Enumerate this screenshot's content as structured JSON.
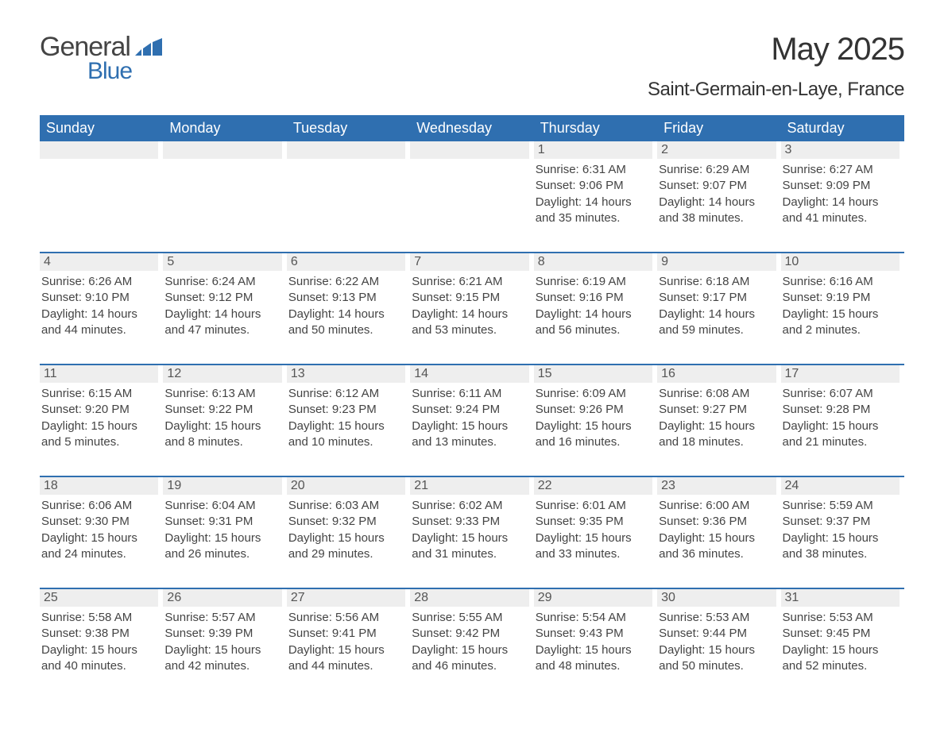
{
  "brand": {
    "text_general": "General",
    "text_blue": "Blue",
    "colors": {
      "general": "#444444",
      "blue": "#2f6fb0",
      "icon": "#2f6fb0"
    }
  },
  "title": {
    "month_year": "May 2025",
    "location": "Saint-Germain-en-Laye, France"
  },
  "styling": {
    "header_bg": "#2f6fb0",
    "header_text": "#ffffff",
    "row_separator": "#2f6fb0",
    "daynum_bg": "#eeeeee",
    "daynum_text": "#555555",
    "body_text": "#444444",
    "page_bg": "#ffffff",
    "font_family": "Arial, Helvetica, sans-serif",
    "month_title_fontsize": 40,
    "location_fontsize": 24,
    "day_header_fontsize": 18,
    "daynum_fontsize": 16,
    "detail_fontsize": 15
  },
  "day_headers": [
    "Sunday",
    "Monday",
    "Tuesday",
    "Wednesday",
    "Thursday",
    "Friday",
    "Saturday"
  ],
  "weeks": [
    [
      {
        "empty": true
      },
      {
        "empty": true
      },
      {
        "empty": true
      },
      {
        "empty": true
      },
      {
        "day": "1",
        "sunrise": "6:31 AM",
        "sunset": "9:06 PM",
        "daylight": "14 hours and 35 minutes."
      },
      {
        "day": "2",
        "sunrise": "6:29 AM",
        "sunset": "9:07 PM",
        "daylight": "14 hours and 38 minutes."
      },
      {
        "day": "3",
        "sunrise": "6:27 AM",
        "sunset": "9:09 PM",
        "daylight": "14 hours and 41 minutes."
      }
    ],
    [
      {
        "day": "4",
        "sunrise": "6:26 AM",
        "sunset": "9:10 PM",
        "daylight": "14 hours and 44 minutes."
      },
      {
        "day": "5",
        "sunrise": "6:24 AM",
        "sunset": "9:12 PM",
        "daylight": "14 hours and 47 minutes."
      },
      {
        "day": "6",
        "sunrise": "6:22 AM",
        "sunset": "9:13 PM",
        "daylight": "14 hours and 50 minutes."
      },
      {
        "day": "7",
        "sunrise": "6:21 AM",
        "sunset": "9:15 PM",
        "daylight": "14 hours and 53 minutes."
      },
      {
        "day": "8",
        "sunrise": "6:19 AM",
        "sunset": "9:16 PM",
        "daylight": "14 hours and 56 minutes."
      },
      {
        "day": "9",
        "sunrise": "6:18 AM",
        "sunset": "9:17 PM",
        "daylight": "14 hours and 59 minutes."
      },
      {
        "day": "10",
        "sunrise": "6:16 AM",
        "sunset": "9:19 PM",
        "daylight": "15 hours and 2 minutes."
      }
    ],
    [
      {
        "day": "11",
        "sunrise": "6:15 AM",
        "sunset": "9:20 PM",
        "daylight": "15 hours and 5 minutes."
      },
      {
        "day": "12",
        "sunrise": "6:13 AM",
        "sunset": "9:22 PM",
        "daylight": "15 hours and 8 minutes."
      },
      {
        "day": "13",
        "sunrise": "6:12 AM",
        "sunset": "9:23 PM",
        "daylight": "15 hours and 10 minutes."
      },
      {
        "day": "14",
        "sunrise": "6:11 AM",
        "sunset": "9:24 PM",
        "daylight": "15 hours and 13 minutes."
      },
      {
        "day": "15",
        "sunrise": "6:09 AM",
        "sunset": "9:26 PM",
        "daylight": "15 hours and 16 minutes."
      },
      {
        "day": "16",
        "sunrise": "6:08 AM",
        "sunset": "9:27 PM",
        "daylight": "15 hours and 18 minutes."
      },
      {
        "day": "17",
        "sunrise": "6:07 AM",
        "sunset": "9:28 PM",
        "daylight": "15 hours and 21 minutes."
      }
    ],
    [
      {
        "day": "18",
        "sunrise": "6:06 AM",
        "sunset": "9:30 PM",
        "daylight": "15 hours and 24 minutes."
      },
      {
        "day": "19",
        "sunrise": "6:04 AM",
        "sunset": "9:31 PM",
        "daylight": "15 hours and 26 minutes."
      },
      {
        "day": "20",
        "sunrise": "6:03 AM",
        "sunset": "9:32 PM",
        "daylight": "15 hours and 29 minutes."
      },
      {
        "day": "21",
        "sunrise": "6:02 AM",
        "sunset": "9:33 PM",
        "daylight": "15 hours and 31 minutes."
      },
      {
        "day": "22",
        "sunrise": "6:01 AM",
        "sunset": "9:35 PM",
        "daylight": "15 hours and 33 minutes."
      },
      {
        "day": "23",
        "sunrise": "6:00 AM",
        "sunset": "9:36 PM",
        "daylight": "15 hours and 36 minutes."
      },
      {
        "day": "24",
        "sunrise": "5:59 AM",
        "sunset": "9:37 PM",
        "daylight": "15 hours and 38 minutes."
      }
    ],
    [
      {
        "day": "25",
        "sunrise": "5:58 AM",
        "sunset": "9:38 PM",
        "daylight": "15 hours and 40 minutes."
      },
      {
        "day": "26",
        "sunrise": "5:57 AM",
        "sunset": "9:39 PM",
        "daylight": "15 hours and 42 minutes."
      },
      {
        "day": "27",
        "sunrise": "5:56 AM",
        "sunset": "9:41 PM",
        "daylight": "15 hours and 44 minutes."
      },
      {
        "day": "28",
        "sunrise": "5:55 AM",
        "sunset": "9:42 PM",
        "daylight": "15 hours and 46 minutes."
      },
      {
        "day": "29",
        "sunrise": "5:54 AM",
        "sunset": "9:43 PM",
        "daylight": "15 hours and 48 minutes."
      },
      {
        "day": "30",
        "sunrise": "5:53 AM",
        "sunset": "9:44 PM",
        "daylight": "15 hours and 50 minutes."
      },
      {
        "day": "31",
        "sunrise": "5:53 AM",
        "sunset": "9:45 PM",
        "daylight": "15 hours and 52 minutes."
      }
    ]
  ],
  "labels": {
    "sunrise_prefix": "Sunrise: ",
    "sunset_prefix": "Sunset: ",
    "daylight_prefix": "Daylight: "
  }
}
